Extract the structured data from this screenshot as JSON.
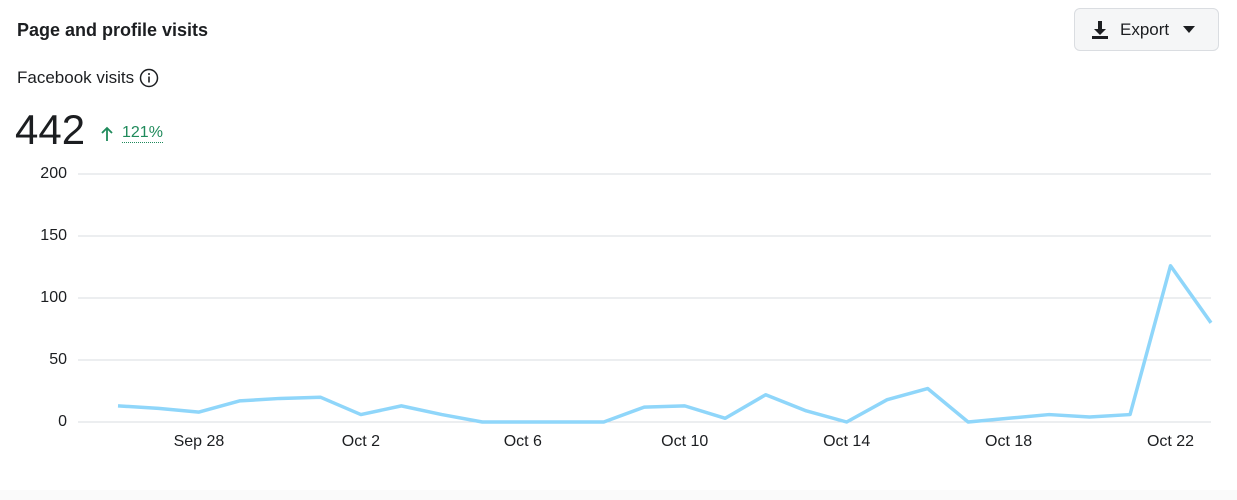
{
  "header": {
    "title": "Page and profile visits",
    "button": "Export"
  },
  "metric": {
    "label": "Facebook visits",
    "value": "442",
    "change": "121%"
  },
  "chart_data": {
    "type": "line",
    "categories": [
      null,
      null,
      "Sep 28",
      null,
      null,
      null,
      "Oct 2",
      null,
      null,
      null,
      "Oct 6",
      null,
      null,
      null,
      "Oct 10",
      null,
      null,
      null,
      "Oct 14",
      null,
      null,
      null,
      "Oct 18",
      null,
      null,
      null,
      "Oct 22",
      null
    ],
    "series": [
      {
        "color": "#8fd6fa",
        "values": [
          13,
          11,
          8,
          17,
          19,
          20,
          6,
          13,
          6,
          0,
          0,
          0,
          0,
          12,
          13,
          3,
          22,
          9,
          0,
          18,
          27,
          0,
          3,
          6,
          4,
          6,
          126,
          80
        ]
      }
    ],
    "ylim": [
      0,
      200
    ],
    "yticks": [
      0,
      50,
      100,
      150,
      200
    ],
    "grid": true
  }
}
